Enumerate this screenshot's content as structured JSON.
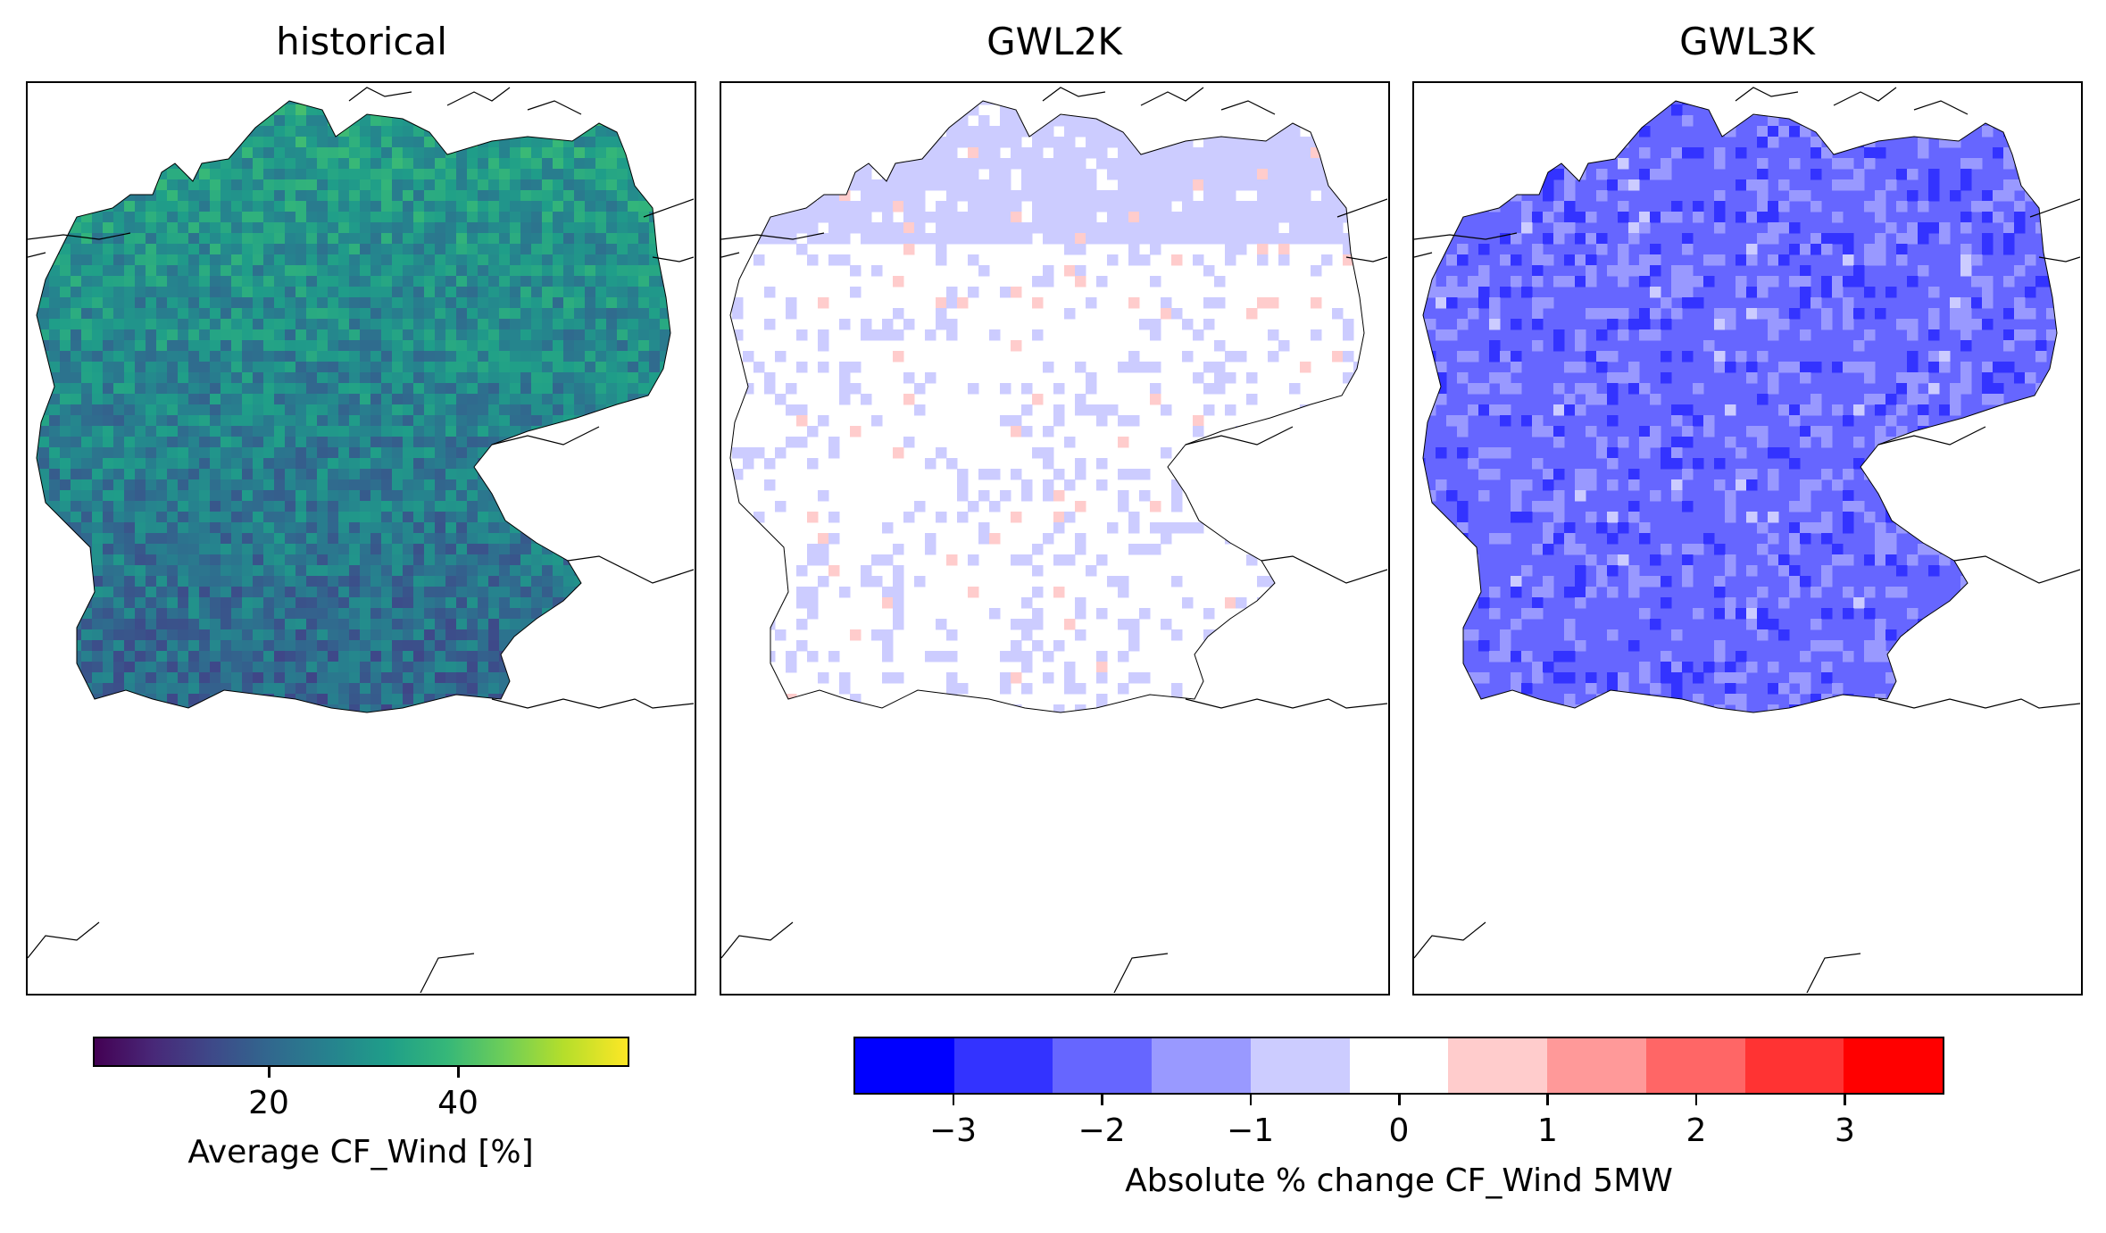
{
  "panels": [
    {
      "title": "historical",
      "kind": "viridis"
    },
    {
      "title": "GWL2K",
      "kind": "change2k"
    },
    {
      "title": "GWL3K",
      "kind": "change3k"
    }
  ],
  "colorbar_left": {
    "label": "Average CF_Wind [%]",
    "ticks": [
      "20",
      "40"
    ],
    "tick_values": [
      20,
      40
    ],
    "range": [
      1,
      58
    ],
    "colormap": "viridis"
  },
  "colorbar_right": {
    "label": "Absolute % change CF_Wind 5MW",
    "ticks": [
      "−3",
      "−2",
      "−1",
      "0",
      "1",
      "2",
      "3"
    ],
    "tick_values": [
      -3,
      -2,
      -1,
      0,
      1,
      2,
      3
    ],
    "range": [
      -3.67,
      3.67
    ],
    "bins": [
      "#0000ff",
      "#3333ff",
      "#6666ff",
      "#9999ff",
      "#ccccff",
      "#ffffff",
      "#ffcccc",
      "#ff9999",
      "#ff6666",
      "#ff3333",
      "#ff0000"
    ]
  },
  "colors": {
    "viridis_dark": "#440154",
    "viridis_mid": "#21918c",
    "viridis_light": "#fde725",
    "border": "#000000"
  }
}
